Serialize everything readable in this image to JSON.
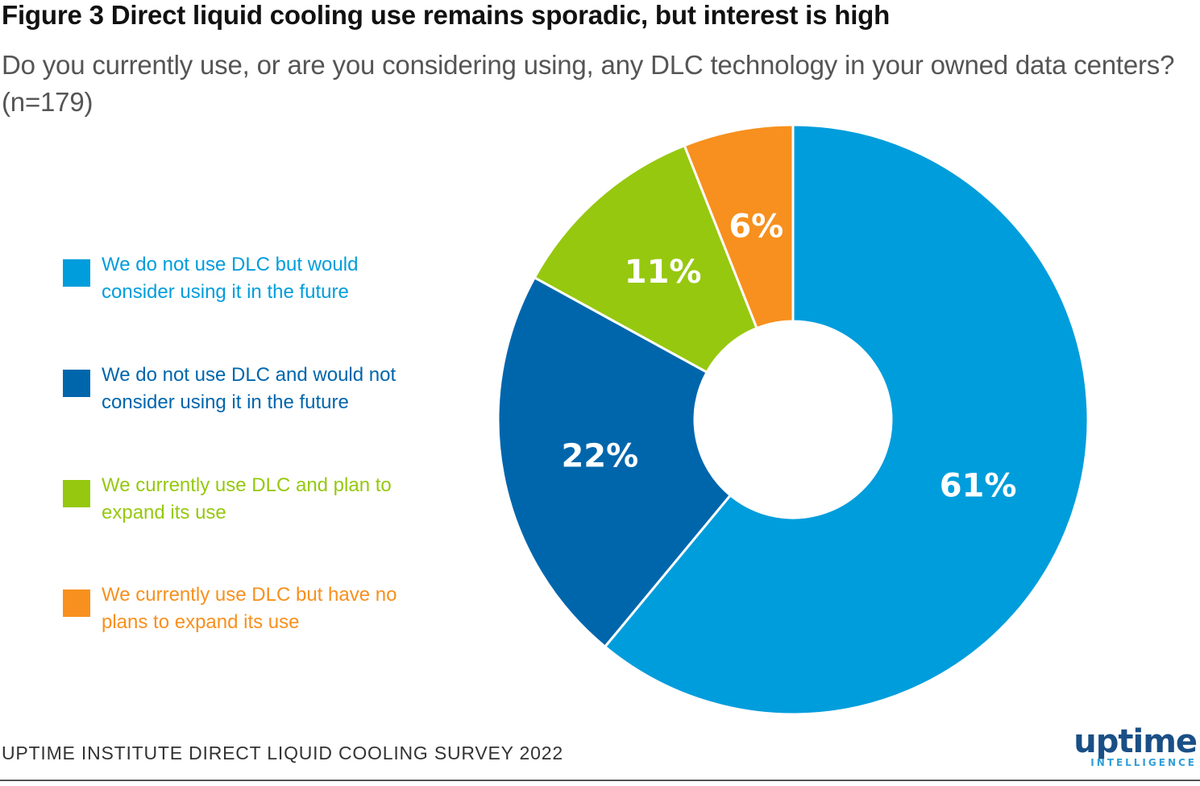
{
  "title": "Figure 3 Direct liquid cooling use remains sporadic, but interest is high",
  "subtitle": "Do you currently use, or are you considering using, any DLC technology in your owned data centers? (n=179)",
  "source": "UPTIME INSTITUTE DIRECT LIQUID COOLING SURVEY 2022",
  "logo": {
    "main": "uptime",
    "sub": "INTELLIGENCE"
  },
  "chart_data": {
    "type": "pie",
    "donut": true,
    "legend_position": "left",
    "categories": [
      "We do not use DLC but would consider using it in the future",
      "We do not use DLC and would not consider using it in the future",
      "We currently use DLC and plan to expand its use",
      "We currently use DLC but have no plans to expand its use"
    ],
    "values": [
      61,
      22,
      11,
      6
    ],
    "labels": [
      "61%",
      "22%",
      "11%",
      "6%"
    ],
    "colors": [
      "#009ddc",
      "#0066ac",
      "#96c80f",
      "#f7901e"
    ]
  }
}
